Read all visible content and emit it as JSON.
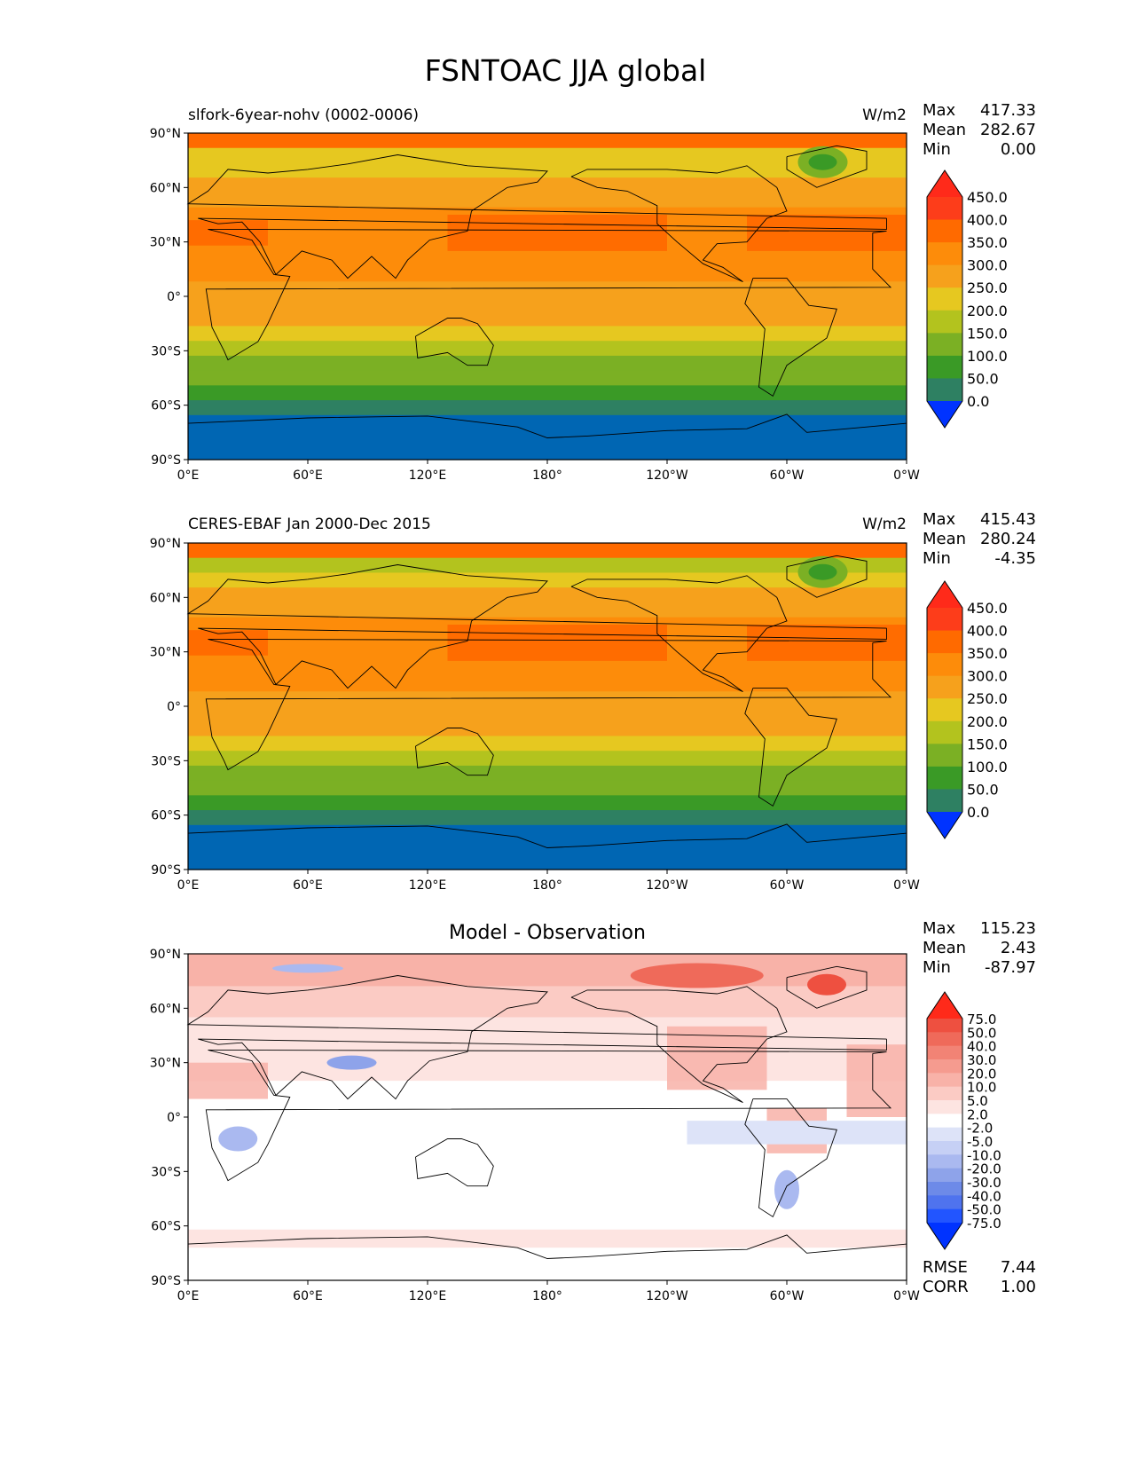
{
  "title": "FSNTOAC JJA global",
  "colors": {
    "seq": [
      "#0033ff",
      "#0066b3",
      "#2e8062",
      "#3a9a26",
      "#7bb024",
      "#b3c31e",
      "#e6c820",
      "#f6a11c",
      "#fd8c0a",
      "#ff6a00",
      "#fd3d1a",
      "#ff2a1a"
    ],
    "diff": [
      "#0033ff",
      "#2255ff",
      "#4f73ee",
      "#6d8ae8",
      "#8ea3ea",
      "#aab9f0",
      "#c6d0f5",
      "#dde3f8",
      "#ffffff",
      "#fde4e1",
      "#fbcbc4",
      "#f8b2a8",
      "#f59b8f",
      "#f28375",
      "#ef6a5a",
      "#ee5040",
      "#ff2a1a"
    ]
  },
  "chart_data": [
    {
      "type": "heatmap",
      "title": "slfork-6year-nohv (0002-0006)",
      "units": "W/m2",
      "stats": {
        "max_label": "Max",
        "max": "417.33",
        "mean_label": "Mean",
        "mean": "282.67",
        "min_label": "Min",
        "min": "0.00"
      },
      "xlabels": [
        "0°E",
        "60°E",
        "120°E",
        "180°",
        "120°W",
        "60°W",
        "0°W"
      ],
      "ylabels": [
        "90°N",
        "60°N",
        "30°N",
        "0°",
        "30°S",
        "60°S",
        "90°S"
      ],
      "levels": [
        "450.0",
        "400.0",
        "350.0",
        "300.0",
        "250.0",
        "200.0",
        "150.0",
        "100.0",
        "50.0",
        "0.0"
      ],
      "zonal_band_values": [
        410,
        250,
        290,
        330,
        340,
        355,
        375,
        380,
        380,
        360,
        340,
        320,
        300,
        270,
        235,
        190,
        150,
        110,
        70,
        30,
        25,
        2
      ],
      "xlim": [
        0,
        360
      ],
      "ylim": [
        -90,
        90
      ]
    },
    {
      "type": "heatmap",
      "title": "CERES-EBAF Jan 2000-Dec 2015",
      "units": "W/m2",
      "stats": {
        "max_label": "Max",
        "max": "415.43",
        "mean_label": "Mean",
        "mean": "280.24",
        "min_label": "Min",
        "min": "-4.35"
      },
      "xlabels": [
        "0°E",
        "60°E",
        "120°E",
        "180°",
        "120°W",
        "60°W",
        "0°W"
      ],
      "ylabels": [
        "90°N",
        "60°N",
        "30°N",
        "0°",
        "30°S",
        "60°S",
        "90°S"
      ],
      "levels": [
        "450.0",
        "400.0",
        "350.0",
        "300.0",
        "250.0",
        "200.0",
        "150.0",
        "100.0",
        "50.0",
        "0.0"
      ],
      "zonal_band_values": [
        400,
        230,
        280,
        320,
        335,
        350,
        375,
        380,
        380,
        360,
        340,
        320,
        300,
        270,
        235,
        190,
        150,
        110,
        70,
        30,
        2,
        2
      ],
      "xlim": [
        0,
        360
      ],
      "ylim": [
        -90,
        90
      ]
    },
    {
      "type": "heatmap",
      "title": "Model - Observation",
      "stats": {
        "max_label": "Max",
        "max": "115.23",
        "mean_label": "Mean",
        "mean": "2.43",
        "min_label": "Min",
        "min": "-87.97"
      },
      "metrics": {
        "rmse_label": "RMSE",
        "rmse": "7.44",
        "corr_label": "CORR",
        "corr": "1.00"
      },
      "xlabels": [
        "0°E",
        "60°E",
        "120°E",
        "180°",
        "120°W",
        "60°W",
        "0°W"
      ],
      "ylabels": [
        "90°N",
        "60°N",
        "30°N",
        "0°",
        "30°S",
        "60°S",
        "90°S"
      ],
      "levels": [
        "75.0",
        "50.0",
        "40.0",
        "30.0",
        "20.0",
        "10.0",
        "5.0",
        "2.0",
        "-2.0",
        "-5.0",
        "-10.0",
        "-20.0",
        "-30.0",
        "-40.0",
        "-50.0",
        "-75.0"
      ],
      "xlim": [
        0,
        360
      ],
      "ylim": [
        -90,
        90
      ]
    }
  ]
}
